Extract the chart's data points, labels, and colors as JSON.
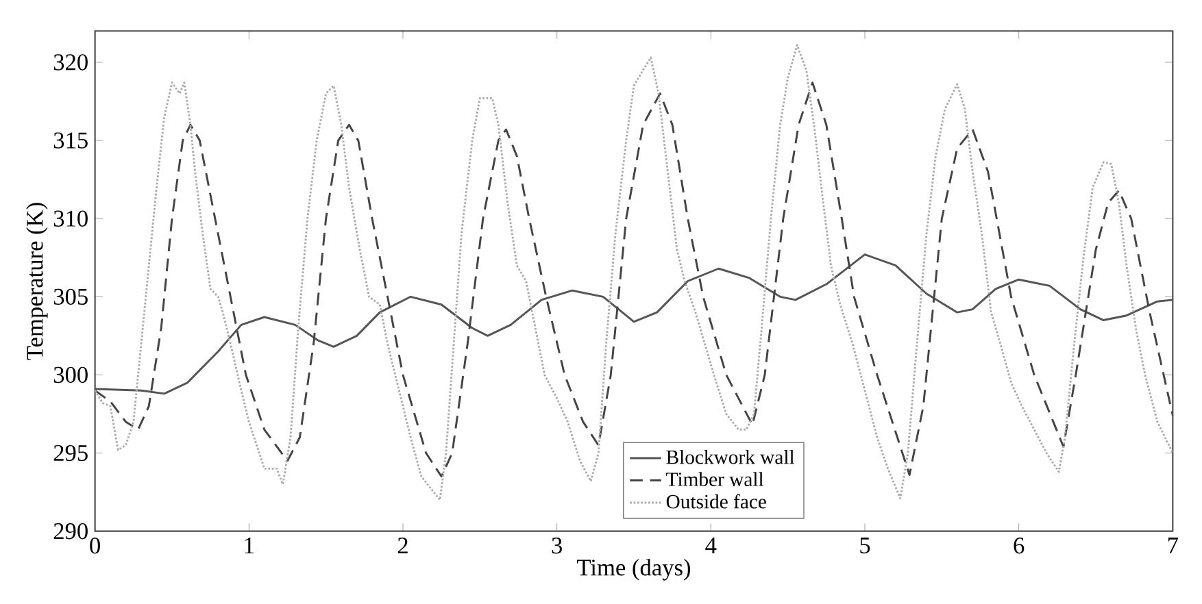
{
  "chart_data": {
    "type": "line",
    "xlabel": "Time (days)",
    "ylabel": "Temperature (K)",
    "xlim": [
      0,
      7
    ],
    "ylim": [
      290,
      322
    ],
    "xticks": [
      0,
      1,
      2,
      3,
      4,
      5,
      6,
      7
    ],
    "yticks": [
      290,
      295,
      300,
      305,
      310,
      315,
      320
    ],
    "grid": false,
    "legend": "bottom",
    "marker": "none",
    "series": [
      {
        "name": "Blockwork wall",
        "color": "#555555",
        "line_style": "solid",
        "x": [
          0,
          0.3,
          0.45,
          0.6,
          0.8,
          0.95,
          1.1,
          1.3,
          1.45,
          1.55,
          1.7,
          1.85,
          2.05,
          2.25,
          2.45,
          2.55,
          2.7,
          2.9,
          3.1,
          3.3,
          3.45,
          3.5,
          3.65,
          3.85,
          4.05,
          4.25,
          4.45,
          4.55,
          4.75,
          5.0,
          5.2,
          5.4,
          5.6,
          5.7,
          5.85,
          6.0,
          6.2,
          6.4,
          6.55,
          6.7,
          6.9,
          7.0
        ],
        "values": [
          299.1,
          299.0,
          298.8,
          299.5,
          301.5,
          303.2,
          303.7,
          303.2,
          302.2,
          301.8,
          302.5,
          304.0,
          305.0,
          304.5,
          303.0,
          302.5,
          303.2,
          304.8,
          305.4,
          305.0,
          303.8,
          303.4,
          304.0,
          306.0,
          306.8,
          306.2,
          305.0,
          304.8,
          305.8,
          307.7,
          307.0,
          305.2,
          304.0,
          304.2,
          305.5,
          306.1,
          305.7,
          304.2,
          303.5,
          303.8,
          304.7,
          304.8
        ]
      },
      {
        "name": "Timber wall",
        "color": "#444444",
        "line_style": "dashed",
        "x": [
          0,
          0.1,
          0.2,
          0.28,
          0.35,
          0.43,
          0.5,
          0.57,
          0.62,
          0.68,
          0.78,
          0.88,
          0.98,
          1.1,
          1.25,
          1.33,
          1.42,
          1.5,
          1.58,
          1.65,
          1.71,
          1.8,
          1.9,
          2.0,
          2.15,
          2.25,
          2.32,
          2.42,
          2.52,
          2.62,
          2.67,
          2.74,
          2.82,
          2.93,
          3.05,
          3.17,
          3.27,
          3.35,
          3.45,
          3.56,
          3.67,
          3.75,
          3.85,
          3.95,
          4.1,
          4.27,
          4.35,
          4.47,
          4.57,
          4.66,
          4.75,
          4.85,
          4.93,
          5.08,
          5.29,
          5.38,
          5.5,
          5.6,
          5.7,
          5.8,
          5.95,
          6.1,
          6.29,
          6.37,
          6.5,
          6.58,
          6.65,
          6.73,
          6.85,
          7.0
        ],
        "values": [
          299.0,
          298.3,
          297.0,
          296.5,
          298.0,
          303.0,
          310.0,
          315.0,
          316.0,
          315.0,
          310.0,
          305.0,
          300.0,
          296.5,
          294.5,
          296.0,
          302.0,
          310.0,
          315.0,
          316.0,
          315.0,
          310.0,
          305.0,
          300.0,
          295.0,
          293.5,
          295.0,
          302.0,
          310.0,
          315.0,
          315.7,
          314.0,
          310.0,
          305.0,
          300.0,
          297.0,
          295.5,
          300.0,
          310.0,
          316.0,
          318.0,
          316.0,
          310.0,
          305.0,
          300.0,
          296.8,
          300.0,
          310.0,
          316.0,
          318.7,
          316.0,
          310.0,
          305.0,
          300.0,
          293.6,
          298.0,
          310.0,
          314.5,
          315.7,
          313.0,
          305.0,
          300.0,
          295.4,
          300.0,
          308.0,
          311.0,
          311.8,
          310.0,
          304.0,
          297.4
        ]
      },
      {
        "name": "Outside face",
        "color": "#aaaaaa",
        "line_style": "dotted",
        "x": [
          0,
          0.05,
          0.1,
          0.15,
          0.2,
          0.25,
          0.3,
          0.35,
          0.4,
          0.45,
          0.5,
          0.55,
          0.58,
          0.62,
          0.65,
          0.7,
          0.75,
          0.8,
          0.83,
          0.88,
          0.95,
          1.0,
          1.05,
          1.1,
          1.18,
          1.22,
          1.27,
          1.32,
          1.38,
          1.44,
          1.5,
          1.55,
          1.6,
          1.65,
          1.72,
          1.78,
          1.85,
          1.9,
          1.95,
          2.0,
          2.05,
          2.12,
          2.2,
          2.24,
          2.28,
          2.33,
          2.38,
          2.45,
          2.5,
          2.58,
          2.62,
          2.68,
          2.74,
          2.8,
          2.86,
          2.92,
          3.0,
          3.07,
          3.15,
          3.22,
          3.27,
          3.32,
          3.38,
          3.45,
          3.5,
          3.56,
          3.61,
          3.66,
          3.72,
          3.78,
          3.83,
          3.9,
          3.96,
          4.02,
          4.1,
          4.18,
          4.23,
          4.28,
          4.33,
          4.39,
          4.45,
          4.5,
          4.56,
          4.62,
          4.67,
          4.73,
          4.78,
          4.84,
          4.92,
          5.0,
          5.08,
          5.15,
          5.23,
          5.28,
          5.33,
          5.4,
          5.46,
          5.52,
          5.6,
          5.65,
          5.7,
          5.76,
          5.82,
          5.88,
          5.95,
          6.02,
          6.1,
          6.18,
          6.26,
          6.3,
          6.36,
          6.42,
          6.48,
          6.55,
          6.6,
          6.65,
          6.7,
          6.76,
          6.82,
          6.9,
          7.0
        ],
        "values": [
          299.0,
          298.2,
          298.0,
          295.2,
          295.5,
          297.0,
          302.0,
          307.0,
          312.0,
          316.5,
          318.7,
          318.0,
          318.7,
          316.0,
          313.0,
          309.0,
          305.5,
          305.0,
          304.0,
          302.0,
          299.0,
          297.0,
          295.5,
          294.0,
          294.0,
          293.0,
          296.0,
          303.0,
          310.0,
          315.0,
          318.0,
          318.5,
          316.0,
          312.0,
          308.0,
          305.0,
          304.5,
          302.0,
          300.0,
          298.0,
          296.0,
          293.5,
          292.5,
          292.0,
          295.0,
          302.0,
          309.0,
          315.0,
          317.7,
          317.7,
          316.0,
          311.0,
          307.0,
          306.0,
          303.0,
          300.0,
          298.5,
          297.0,
          294.5,
          293.2,
          295.0,
          302.0,
          309.0,
          315.0,
          318.5,
          319.5,
          320.3,
          318.0,
          313.0,
          308.0,
          306.0,
          304.0,
          302.0,
          300.0,
          297.5,
          296.5,
          296.5,
          297.5,
          303.0,
          310.0,
          316.0,
          319.0,
          321.1,
          319.5,
          316.0,
          311.0,
          307.0,
          304.5,
          302.0,
          299.0,
          296.0,
          294.0,
          292.1,
          295.0,
          301.0,
          309.0,
          314.0,
          317.0,
          318.6,
          317.0,
          313.0,
          309.0,
          304.0,
          302.0,
          299.5,
          298.0,
          296.5,
          295.0,
          293.8,
          296.0,
          302.0,
          307.5,
          312.0,
          313.6,
          313.5,
          311.0,
          307.0,
          303.0,
          300.0,
          297.0,
          295.0
        ]
      }
    ]
  }
}
